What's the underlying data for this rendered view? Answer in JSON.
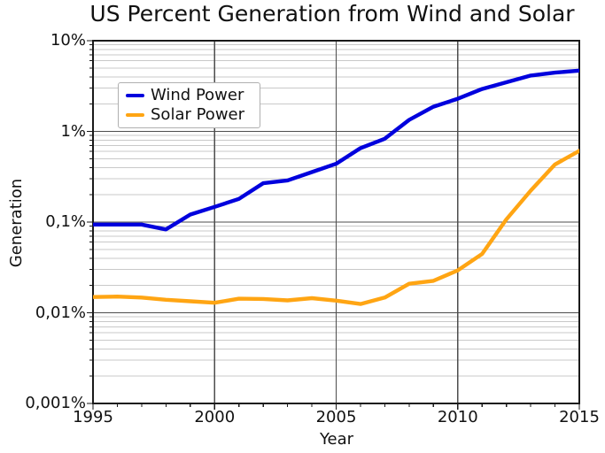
{
  "chart_data": {
    "type": "line",
    "title": "US Percent Generation from Wind and Solar",
    "xlabel": "Year",
    "ylabel": "Generation",
    "x_axis": {
      "min": 1995,
      "max": 2015,
      "major_ticks": [
        1995,
        2000,
        2005,
        2010,
        2015
      ],
      "tick_labels": [
        "1995",
        "2000",
        "2005",
        "2010",
        "2015"
      ],
      "minor_tick_interval_years": 1
    },
    "y_axis": {
      "scale": "log",
      "min_percent": 0.001,
      "max_percent": 10,
      "major_tick_values": [
        10,
        1,
        0.1,
        0.01,
        0.001
      ],
      "tick_labels": [
        "10%",
        "1%",
        "0,1%",
        "0,01%",
        "0,001%"
      ]
    },
    "grid": {
      "major_vertical_years": [
        2000,
        2005,
        2010
      ],
      "major_horizontal_percent": [
        1,
        0.1,
        0.01
      ],
      "minor_horizontal": "log mantissas 2-9 in each decade"
    },
    "legend": {
      "position": "upper-left",
      "entries": [
        "Wind Power",
        "Solar Power"
      ]
    },
    "x": [
      1995,
      1996,
      1997,
      1998,
      1999,
      2000,
      2001,
      2002,
      2003,
      2004,
      2005,
      2006,
      2007,
      2008,
      2009,
      2010,
      2011,
      2012,
      2013,
      2014,
      2015
    ],
    "series": [
      {
        "name": "Wind Power",
        "color": "#0000dd",
        "values_percent": [
          0.094,
          0.094,
          0.094,
          0.083,
          0.121,
          0.147,
          0.18,
          0.268,
          0.288,
          0.356,
          0.439,
          0.654,
          0.829,
          1.34,
          1.87,
          2.29,
          2.93,
          3.48,
          4.13,
          4.44,
          4.68
        ]
      },
      {
        "name": "Solar Power",
        "color": "#ffa513",
        "values_percent": [
          0.0149,
          0.0151,
          0.0147,
          0.0139,
          0.0134,
          0.0129,
          0.0143,
          0.0142,
          0.0137,
          0.0145,
          0.0136,
          0.0125,
          0.0147,
          0.0209,
          0.0225,
          0.0293,
          0.0444,
          0.107,
          0.222,
          0.432,
          0.61
        ]
      }
    ]
  }
}
